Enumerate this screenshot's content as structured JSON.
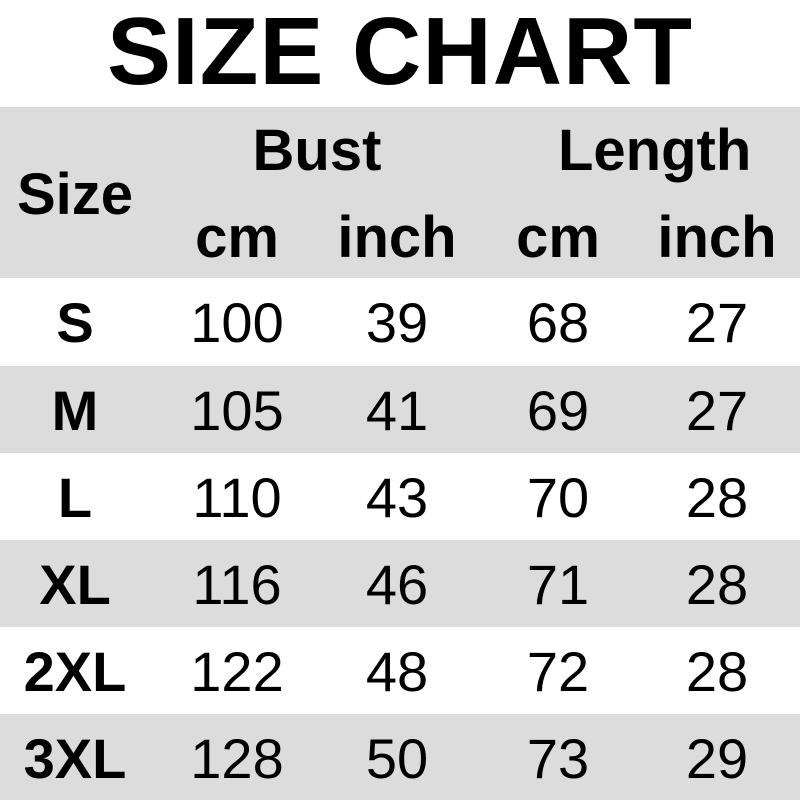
{
  "title": "SIZE CHART",
  "header": {
    "size": "Size",
    "bust": "Bust",
    "length": "Length",
    "bust_cm": "cm",
    "bust_inch": "inch",
    "length_cm": "cm",
    "length_inch": "inch"
  },
  "colors": {
    "stripe": "#dcdcdc",
    "background": "#ffffff",
    "text": "#000000"
  },
  "rows": [
    {
      "size": "S",
      "bust_cm": "100",
      "bust_inch": "39",
      "length_cm": "68",
      "length_inch": "27"
    },
    {
      "size": "M",
      "bust_cm": "105",
      "bust_inch": "41",
      "length_cm": "69",
      "length_inch": "27"
    },
    {
      "size": "L",
      "bust_cm": "110",
      "bust_inch": "43",
      "length_cm": "70",
      "length_inch": "28"
    },
    {
      "size": "XL",
      "bust_cm": "116",
      "bust_inch": "46",
      "length_cm": "71",
      "length_inch": "28"
    },
    {
      "size": "2XL",
      "bust_cm": "122",
      "bust_inch": "48",
      "length_cm": "72",
      "length_inch": "28"
    },
    {
      "size": "3XL",
      "bust_cm": "128",
      "bust_inch": "50",
      "length_cm": "73",
      "length_inch": "29"
    }
  ]
}
